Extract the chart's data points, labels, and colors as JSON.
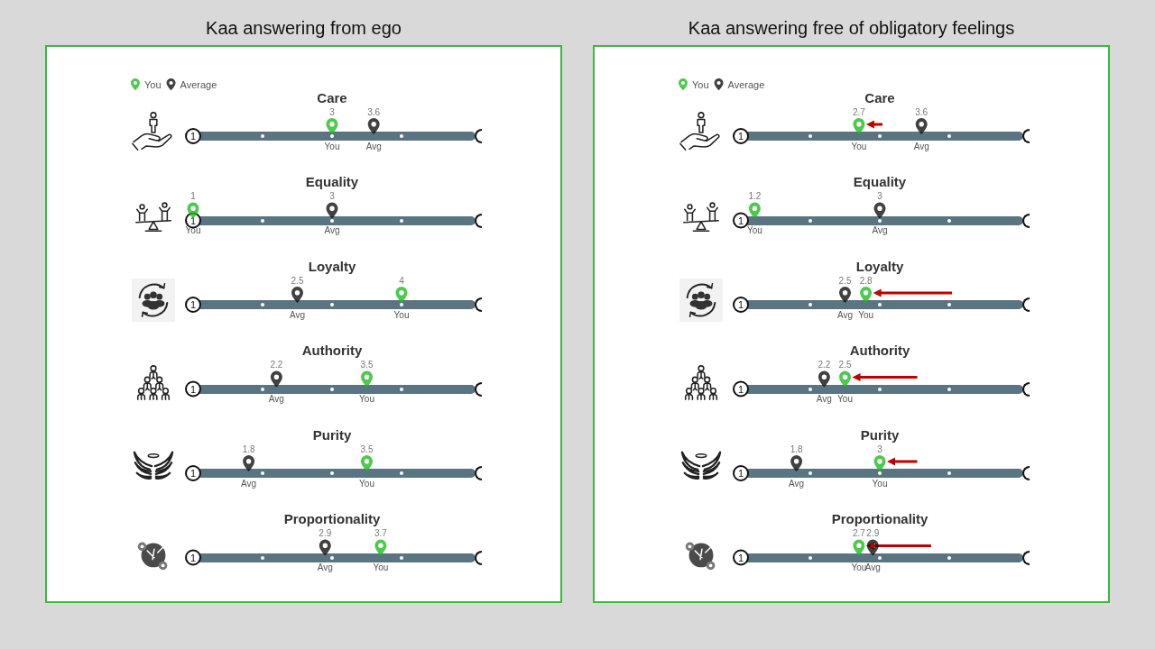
{
  "chart_data": [
    {
      "type": "scatter",
      "title": "Kaa answering from ego",
      "orientation": "horizontal",
      "categories": [
        "Care",
        "Equality",
        "Loyalty",
        "Authority",
        "Purity",
        "Proportionality"
      ],
      "series": [
        {
          "name": "You",
          "color": "#22bb22",
          "values": [
            3,
            1,
            4,
            3.5,
            3.5,
            3.7
          ]
        },
        {
          "name": "Average",
          "color": "#111111",
          "values": [
            3.6,
            3,
            2.5,
            2.2,
            1.8,
            2.9
          ]
        }
      ],
      "xlim": [
        1,
        5
      ],
      "data_labels": true,
      "legend": "top left",
      "grid": "y",
      "annotations": [
        {
          "text": "1",
          "x": 1
        },
        {
          "text": "You",
          "x": 3,
          "y": "Care"
        },
        {
          "text": "Avg",
          "x": 3.6,
          "y": "Care"
        },
        {
          "text": "You",
          "x": 1,
          "y": "Equality"
        },
        {
          "text": "Avg",
          "x": 3,
          "y": "Equality"
        },
        {
          "text": "Avg",
          "x": 2.5,
          "y": "Loyalty"
        },
        {
          "text": "You",
          "x": 4,
          "y": "Loyalty"
        },
        {
          "text": "Avg",
          "x": 2.2,
          "y": "Authority"
        },
        {
          "text": "You",
          "x": 3.5,
          "y": "Authority"
        },
        {
          "text": "Avg",
          "x": 1.8,
          "y": "Purity"
        },
        {
          "text": "You",
          "x": 3.5,
          "y": "Purity"
        },
        {
          "text": "Avg",
          "x": 2.9,
          "y": "Proportionality"
        },
        {
          "text": "You",
          "x": 3.7,
          "y": "Proportionality"
        }
      ]
    },
    {
      "type": "scatter",
      "title": "Kaa answering free of obligatory feelings",
      "orientation": "horizontal",
      "categories": [
        "Care",
        "Equality",
        "Loyalty",
        "Authority",
        "Purity",
        "Proportionality"
      ],
      "series": [
        {
          "name": "You",
          "color": "#22bb22",
          "values": [
            2.7,
            1.2,
            2.8,
            2.5,
            3,
            2.7
          ]
        },
        {
          "name": "Average",
          "color": "#111111",
          "values": [
            3.6,
            3,
            2.5,
            2.2,
            1.8,
            2.9
          ]
        }
      ],
      "xlim": [
        1,
        5
      ],
      "data_labels": true,
      "legend": "top left",
      "grid": "y",
      "annotations": [
        {
          "text": "1",
          "x": 1
        },
        {
          "text": "You",
          "x": 2.7,
          "y": "Care"
        },
        {
          "text": "Avg",
          "x": 3.6,
          "y": "Care"
        },
        {
          "text": "You",
          "x": 1.2,
          "y": "Equality"
        },
        {
          "text": "Avg",
          "x": 3,
          "y": "Equality"
        },
        {
          "text": "Avg",
          "x": 2.5,
          "y": "Loyalty"
        },
        {
          "text": "You",
          "x": 2.8,
          "y": "Loyalty"
        },
        {
          "text": "Avg",
          "x": 2.2,
          "y": "Authority"
        },
        {
          "text": "You",
          "x": 2.5,
          "y": "Authority"
        },
        {
          "text": "Avg",
          "x": 1.8,
          "y": "Purity"
        },
        {
          "text": "You",
          "x": 3,
          "y": "Purity"
        },
        {
          "text": "You",
          "x": 2.7,
          "y": "Proportionality"
        },
        {
          "text": "Avg",
          "x": 2.9,
          "y": "Proportionality"
        }
      ]
    }
  ]
}
